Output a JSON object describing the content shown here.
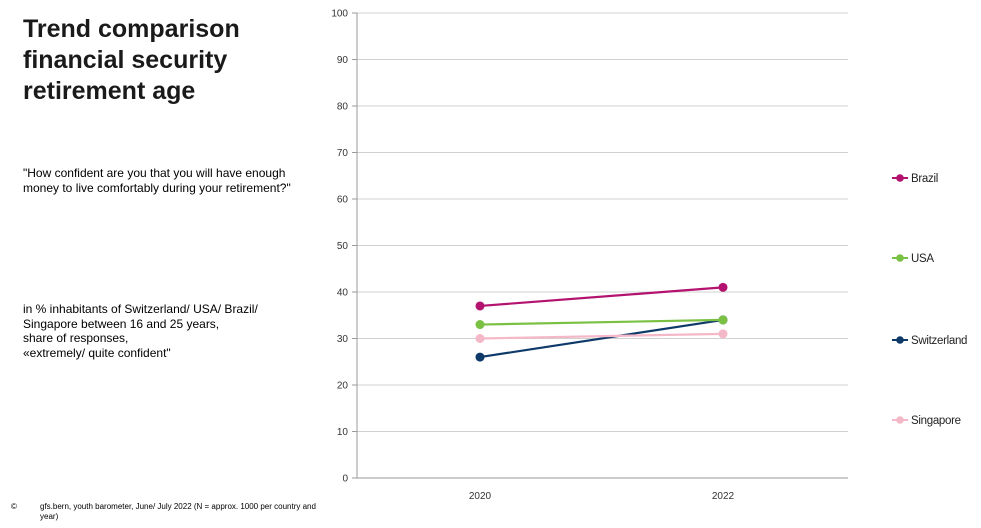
{
  "title_lines": [
    "Trend comparison",
    "financial security",
    "retirement age"
  ],
  "question": "\"How confident are you that you will have enough money to live comfortably during your retirement?\"",
  "description_lines": [
    "in % inhabitants of Switzerland/ USA/ Brazil/",
    "Singapore between 16 and 25 years,",
    "share of responses,",
    "«extremely/ quite confident\""
  ],
  "footer": {
    "copyright": "©",
    "source": "gfs.bern, youth barometer, June/ July 2022 (N = approx. 1000 per country and year)"
  },
  "chart_data": {
    "type": "line",
    "categories": [
      "2020",
      "2022"
    ],
    "ylim": [
      0,
      100
    ],
    "yticks": [
      0,
      10,
      20,
      30,
      40,
      50,
      60,
      70,
      80,
      90,
      100
    ],
    "grid": true,
    "legend_position": "right",
    "xlabel": "",
    "ylabel": "",
    "series": [
      {
        "name": "Brazil",
        "values": [
          37,
          41
        ],
        "color": "#b3126f"
      },
      {
        "name": "USA",
        "values": [
          33,
          34
        ],
        "color": "#7ac143"
      },
      {
        "name": "Switzerland",
        "values": [
          26,
          34
        ],
        "color": "#0e3a6a"
      },
      {
        "name": "Singapore",
        "values": [
          30,
          31
        ],
        "color": "#f5b8c8"
      }
    ]
  }
}
